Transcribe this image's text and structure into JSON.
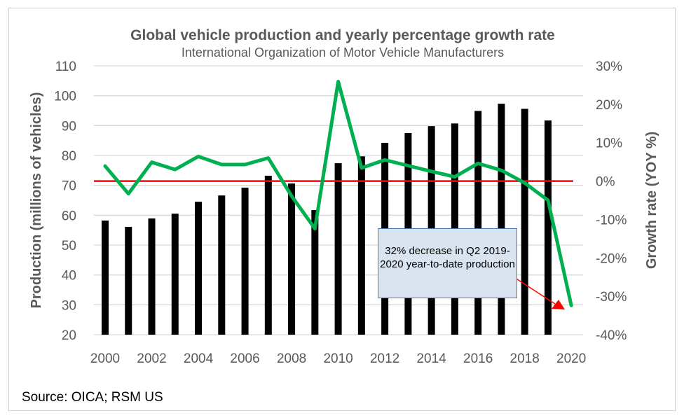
{
  "chart_data": {
    "type": "bar+line",
    "title": "Global vehicle production and yearly percentage growth rate",
    "subtitle": "International Organization of Motor Vehicle Manufacturers",
    "ylabel": "Production (millions of vehicles)",
    "y2label": "Growth rate (YOY %)",
    "ylim": [
      20,
      110
    ],
    "y2lim": [
      -40,
      30
    ],
    "yticks": [
      "20",
      "30",
      "40",
      "50",
      "60",
      "70",
      "80",
      "90",
      "100",
      "110"
    ],
    "y2ticks": [
      "-40%",
      "-30%",
      "-20%",
      "-10%",
      "0%",
      "10%",
      "20%",
      "30%"
    ],
    "xticks": [
      "2000",
      "2002",
      "2004",
      "2006",
      "2008",
      "2010",
      "2012",
      "2014",
      "2016",
      "2018",
      "2020"
    ],
    "grid": true,
    "x": [
      2000,
      2001,
      2002,
      2003,
      2004,
      2005,
      2006,
      2007,
      2008,
      2009,
      2010,
      2011,
      2012,
      2013,
      2014,
      2015,
      2016,
      2017,
      2018,
      2019,
      2020
    ],
    "production": [
      58.2,
      56.1,
      58.9,
      60.5,
      64.5,
      66.6,
      69.2,
      73.2,
      70.6,
      61.7,
      77.4,
      79.7,
      84.2,
      87.5,
      89.8,
      90.7,
      94.9,
      97.3,
      95.6,
      91.7,
      null
    ],
    "growth_pct": [
      3.9,
      -3.3,
      4.9,
      3.0,
      6.4,
      4.3,
      4.3,
      6.0,
      -3.9,
      -12.4,
      25.9,
      3.4,
      5.5,
      4.0,
      2.5,
      1.1,
      4.6,
      2.8,
      -0.5,
      -5.0,
      -32.4
    ],
    "reference_line_pct": 0,
    "colors": {
      "bars": "#000000",
      "growth_line": "#00b050",
      "reference_line": "#ff0000",
      "annotation_fill": "#dae3f0"
    },
    "annotation": "32% decrease in Q2 2019-2020 year-to-date production",
    "source": "Source: OICA; RSM US"
  }
}
